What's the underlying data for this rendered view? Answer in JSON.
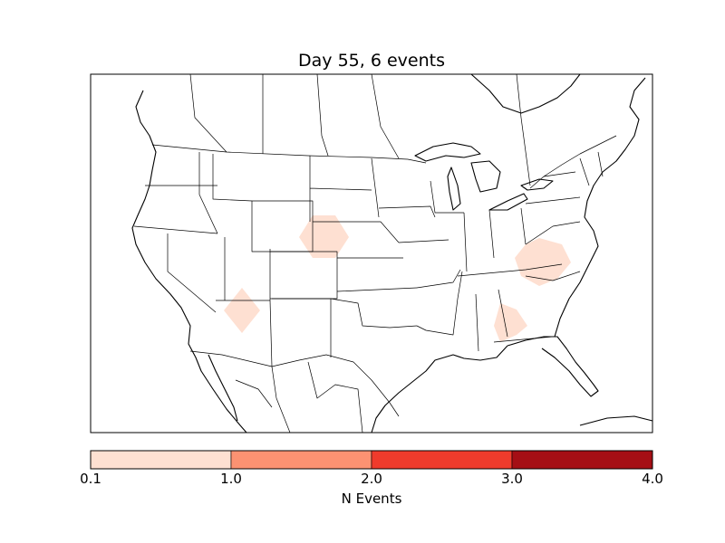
{
  "title": "Day 55, 6 events",
  "colorbar": {
    "label": "N Events",
    "ticks": [
      "0.1",
      "1.0",
      "2.0",
      "3.0",
      "4.0"
    ],
    "bins": [
      {
        "from": 0.1,
        "to": 1.0,
        "color": "#fee0d2"
      },
      {
        "from": 1.0,
        "to": 2.0,
        "color": "#fc9272"
      },
      {
        "from": 2.0,
        "to": 3.0,
        "color": "#ef3b2c"
      },
      {
        "from": 3.0,
        "to": 4.0,
        "color": "#a50f15"
      }
    ]
  },
  "map": {
    "region": "North America",
    "border_color": "#000000",
    "event_regions": [
      {
        "location": "Colorado / Nebraska / Wyoming border",
        "value_bin": "0.1-1.0"
      },
      {
        "location": "Arizona",
        "value_bin": "0.1-1.0"
      },
      {
        "location": "Virginia / North Carolina",
        "value_bin": "0.1-1.0"
      },
      {
        "location": "Alabama / Georgia / Florida",
        "value_bin": "0.1-1.0"
      }
    ]
  }
}
